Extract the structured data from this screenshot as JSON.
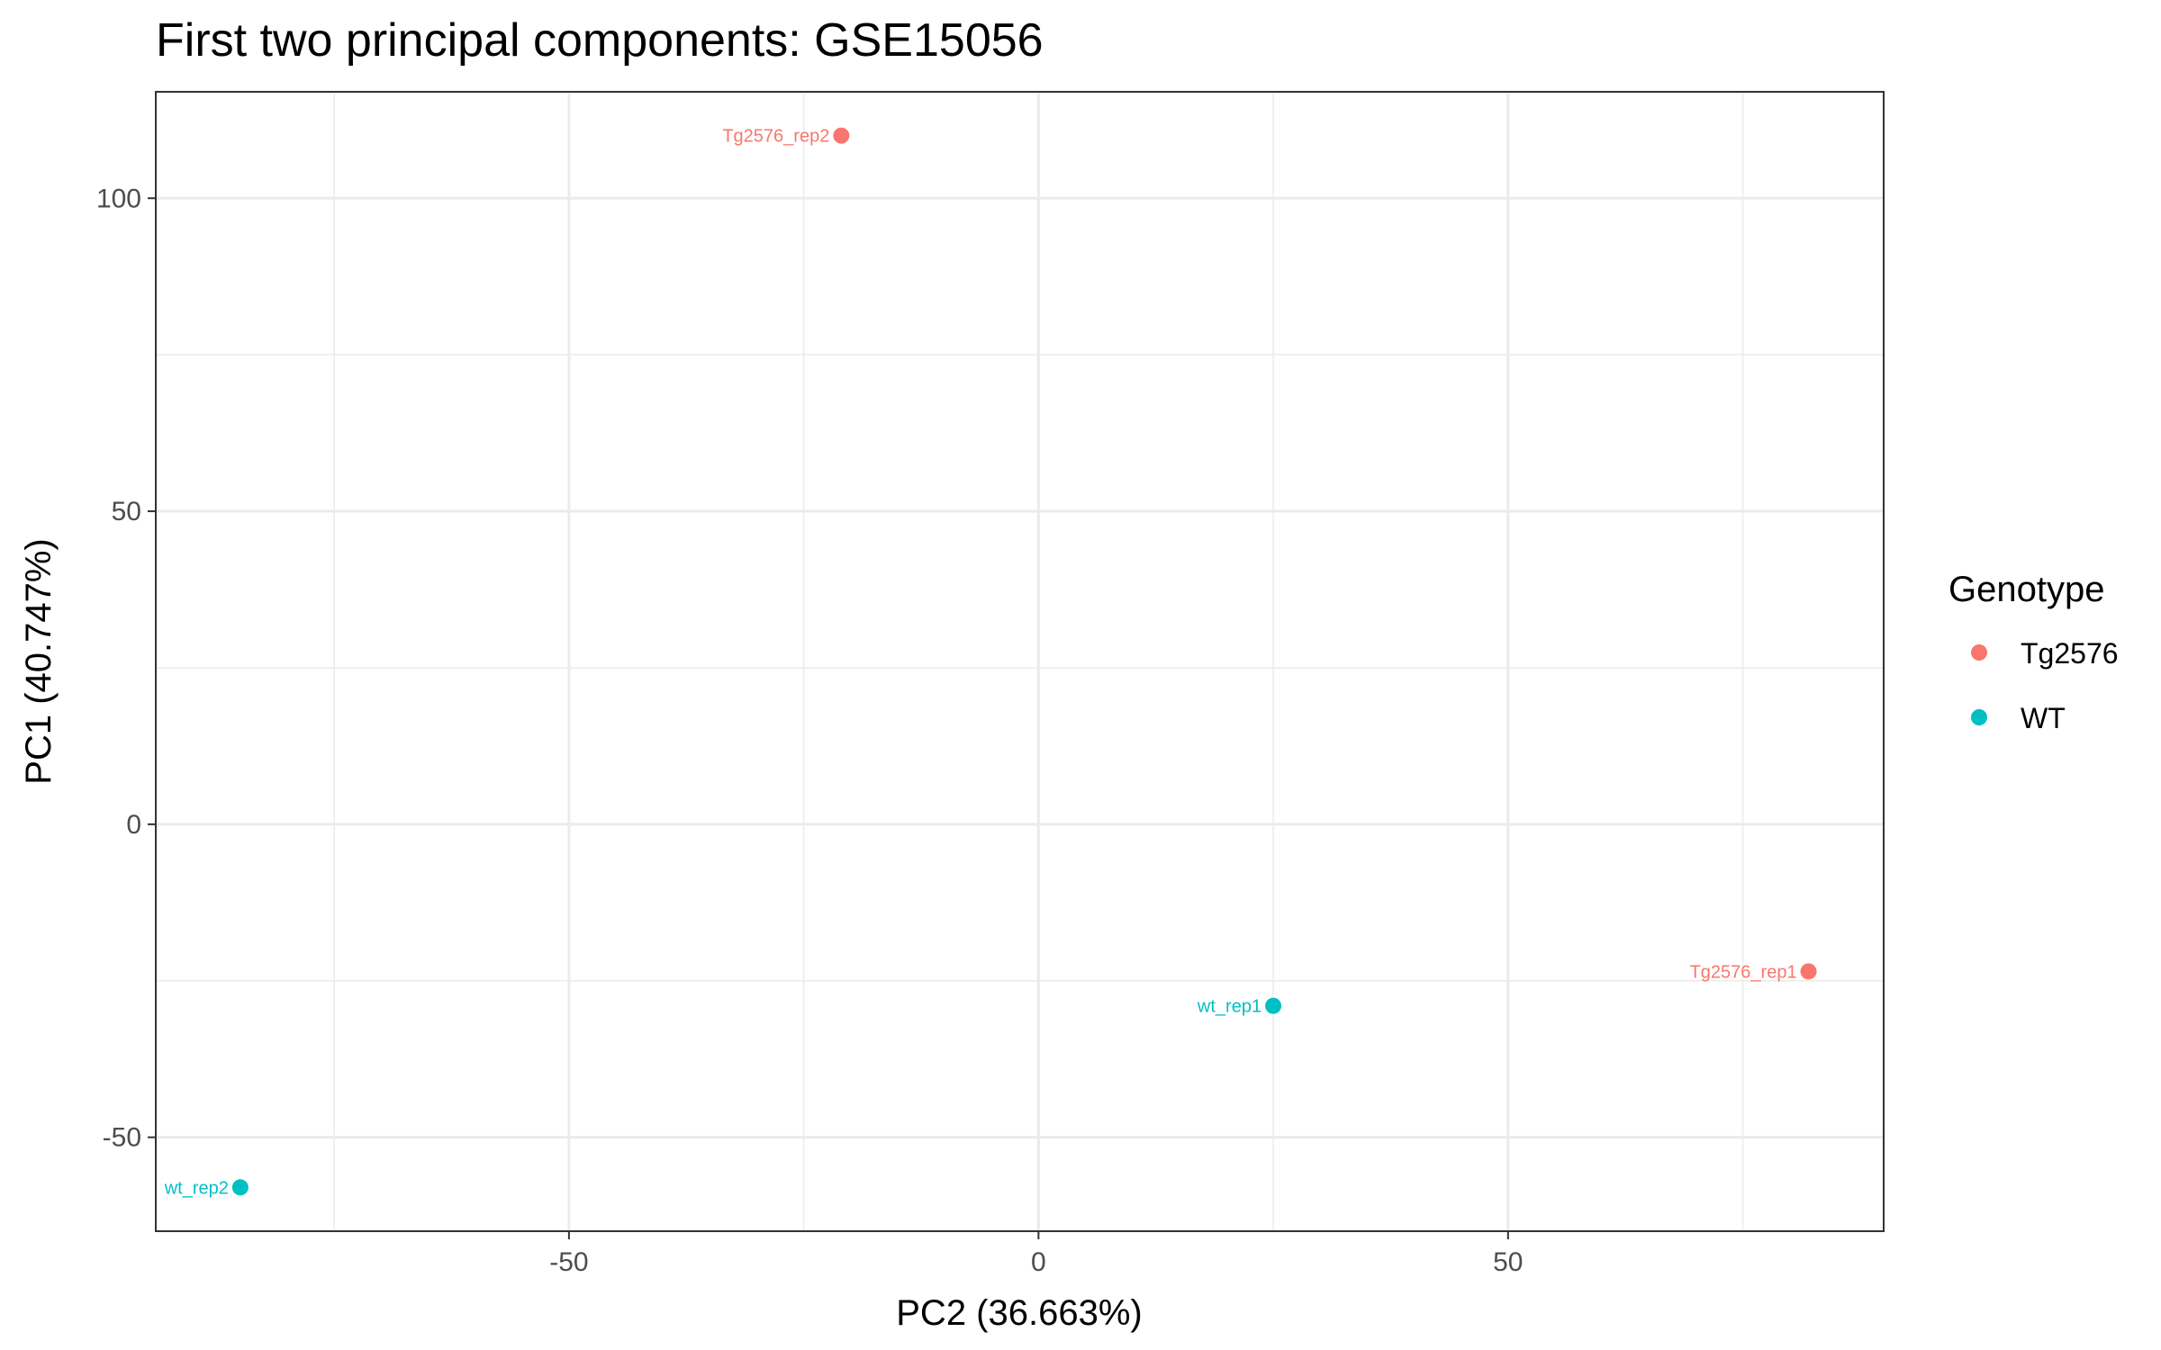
{
  "chart_data": {
    "type": "scatter",
    "title": "First two principal components: GSE15056",
    "xlabel": "PC2 (36.663%)",
    "ylabel": "PC1 (40.747%)",
    "xlim": [
      -94,
      90
    ],
    "ylim": [
      -65,
      117
    ],
    "x_ticks": [
      -50,
      0,
      50
    ],
    "y_ticks": [
      -50,
      0,
      50,
      100
    ],
    "x_tick_labels": [
      "-50",
      "0",
      "50"
    ],
    "y_tick_labels": [
      "-50",
      "0",
      "50",
      "100"
    ],
    "grid": true,
    "legend": {
      "title": "Genotype",
      "placement": "right",
      "entries": [
        {
          "label": "Tg2576",
          "color": "#F8766D"
        },
        {
          "label": "WT",
          "color": "#00BFC4"
        }
      ]
    },
    "points": [
      {
        "label": "Tg2576_rep2",
        "group": "Tg2576",
        "x": -21,
        "y": 110
      },
      {
        "label": "wt_rep1",
        "group": "WT",
        "x": 25,
        "y": -29
      },
      {
        "label": "Tg2576_rep1",
        "group": "Tg2576",
        "x": 82,
        "y": -23.5
      },
      {
        "label": "wt_rep2",
        "group": "WT",
        "x": -85,
        "y": -58
      }
    ]
  }
}
